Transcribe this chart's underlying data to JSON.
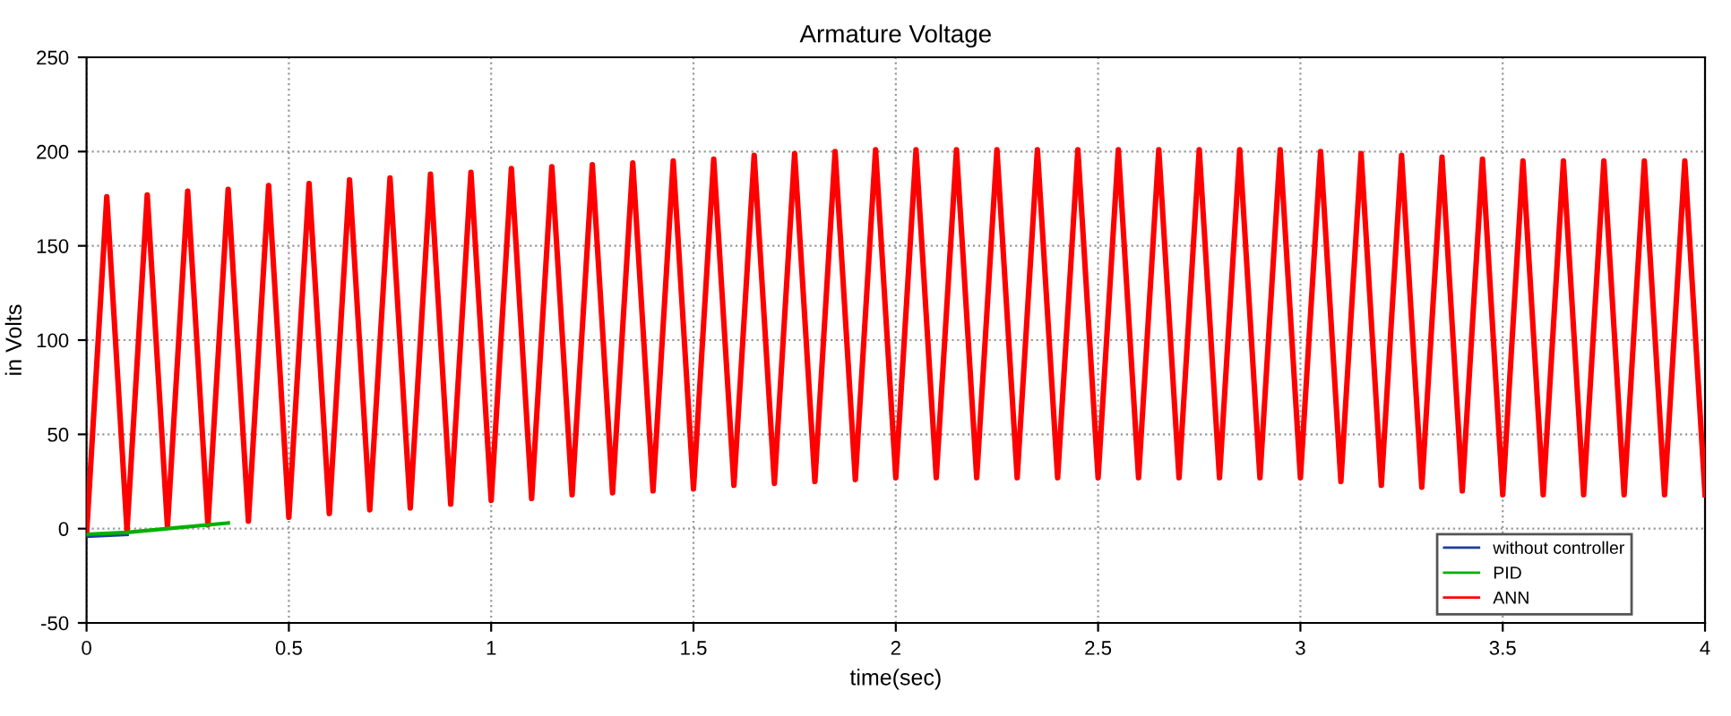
{
  "chart_data": {
    "type": "line",
    "title": "Armature Voltage",
    "xlabel": "time(sec)",
    "ylabel": "in Volts",
    "xlim": [
      0,
      4
    ],
    "ylim": [
      -50,
      250
    ],
    "xticks": [
      0,
      0.5,
      1,
      1.5,
      2,
      2.5,
      3,
      3.5,
      4
    ],
    "yticks": [
      -50,
      0,
      50,
      100,
      150,
      200,
      250
    ],
    "grid": true,
    "legend": "bottom right",
    "line_style": "solid",
    "marker": "none",
    "series": [
      {
        "name": "ANN",
        "color": "#ff0000",
        "x": [
          0,
          0.05,
          0.1,
          0.15,
          0.2,
          0.25,
          0.3,
          0.35,
          0.4,
          0.45,
          0.5,
          0.55,
          0.6,
          0.65,
          0.7,
          0.75,
          0.8,
          0.85,
          0.9,
          0.95,
          1,
          1.05,
          1.1,
          1.15,
          1.2,
          1.25,
          1.3,
          1.35,
          1.4,
          1.45,
          1.5,
          1.55,
          1.6,
          1.65,
          1.7,
          1.75,
          1.8,
          1.85,
          1.9,
          1.95,
          2,
          2.05,
          2.1,
          2.15,
          2.2,
          2.25,
          2.3,
          2.35,
          2.4,
          2.45,
          2.5,
          2.55,
          2.6,
          2.65,
          2.7,
          2.75,
          2.8,
          2.85,
          2.9,
          2.95,
          3,
          3.05,
          3.1,
          3.15,
          3.2,
          3.25,
          3.3,
          3.35,
          3.4,
          3.45,
          3.5,
          3.55,
          3.6,
          3.65,
          3.7,
          3.75,
          3.8,
          3.85,
          3.9,
          3.95,
          4
        ],
        "values": [
          -3,
          176,
          -1,
          177,
          1,
          179,
          2,
          180,
          4,
          182,
          6,
          183,
          8,
          185,
          10,
          186,
          11,
          188,
          13,
          189,
          15,
          191,
          16,
          192,
          18,
          193,
          19,
          194,
          20,
          195,
          21,
          196,
          23,
          198,
          24,
          199,
          25,
          200,
          26,
          201,
          27,
          201,
          27,
          201,
          27,
          201,
          27,
          201,
          27,
          201,
          27,
          201,
          27,
          201,
          27,
          201,
          27,
          201,
          27,
          201,
          27,
          200,
          25,
          199,
          23,
          198,
          22,
          197,
          20,
          196,
          18,
          195,
          18,
          195,
          18,
          195,
          18,
          195,
          18,
          195,
          18
        ]
      },
      {
        "name": "without controller",
        "color": "#1f3f9f",
        "x": [
          0,
          0.1
        ],
        "values": [
          -4,
          -3
        ]
      },
      {
        "name": "PID",
        "color": "#00b000",
        "x": [
          0,
          0.1,
          0.2,
          0.35
        ],
        "values": [
          -3,
          -2,
          0,
          3
        ]
      }
    ]
  }
}
